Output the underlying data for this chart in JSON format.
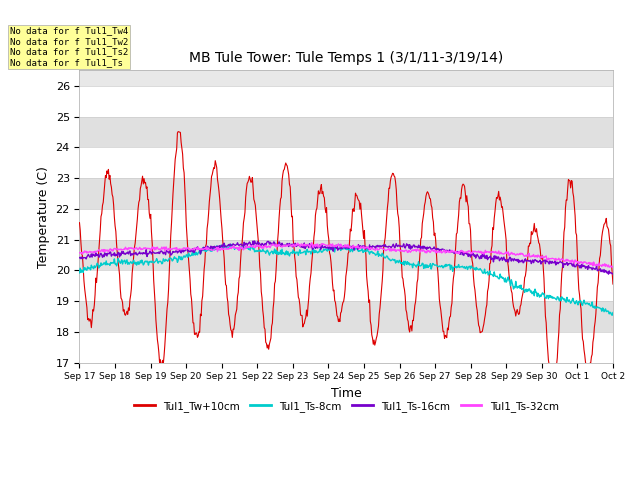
{
  "title": "MB Tule Tower: Tule Temps 1 (3/1/11-3/19/14)",
  "xlabel": "Time",
  "ylabel": "Temperature (C)",
  "ylim": [
    17.0,
    26.5
  ],
  "yticks": [
    17.0,
    18.0,
    19.0,
    20.0,
    21.0,
    22.0,
    23.0,
    24.0,
    25.0,
    26.0
  ],
  "bg_color": "#e8e8e8",
  "plot_bg": "#f0f0f0",
  "line_colors": {
    "Tw": "#dd0000",
    "Ts8": "#00cccc",
    "Ts16": "#7700cc",
    "Ts32": "#ff44ff"
  },
  "legend_labels": [
    "Tul1_Tw+10cm",
    "Tul1_Ts-8cm",
    "Tul1_Ts-16cm",
    "Tul1_Ts-32cm"
  ],
  "no_data_texts": [
    "No data for f Tul1_Tw4",
    "No data for f Tul1_Tw2",
    "No data for f Tul1_Ts2",
    "No data for f Tul1_Ts"
  ],
  "annotations_box_color": "#ffff99",
  "annotations_box_edge": "#aaaaaa",
  "x_tick_labels": [
    "Sep 17",
    "Sep 18",
    "Sep 19",
    "Sep 20",
    "Sep 21",
    "Sep 22",
    "Sep 23",
    "Sep 24",
    "Sep 25",
    "Sep 26",
    "Sep 27",
    "Sep 28",
    "Sep 29",
    "Sep 30",
    "Oct 1",
    "Oct 2"
  ],
  "n_points": 720
}
